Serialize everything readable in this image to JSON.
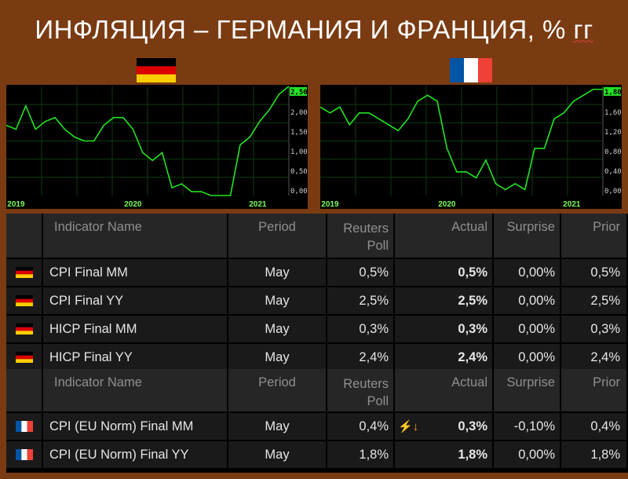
{
  "title": "ИНФЛЯЦИЯ – ГЕРМАНИЯ И ФРАНЦИЯ, % гг",
  "title_main": "ИНФЛЯЦИЯ – ГЕРМАНИЯ И ФРАНЦИЯ, % ",
  "title_end": "гг",
  "colors": {
    "line": "#22e422",
    "grid": "#0f3a0f",
    "axis_text": "#7dff5a",
    "poll": "#3ba6ff",
    "actual": "#f5a623",
    "background": "#7a3b12"
  },
  "chart_data": [
    {
      "type": "line",
      "title": "",
      "country": "Germany",
      "x": [
        "2018-12",
        "2019-01",
        "2019-02",
        "2019-03",
        "2019-04",
        "2019-05",
        "2019-06",
        "2019-07",
        "2019-08",
        "2019-09",
        "2019-10",
        "2019-11",
        "2019-12",
        "2020-01",
        "2020-02",
        "2020-03",
        "2020-04",
        "2020-05",
        "2020-06",
        "2020-07",
        "2020-08",
        "2020-09",
        "2020-10",
        "2020-11",
        "2020-12",
        "2021-01",
        "2021-02",
        "2021-03",
        "2021-04",
        "2021-05"
      ],
      "values": [
        1.5,
        1.4,
        2.0,
        1.4,
        1.6,
        1.7,
        1.4,
        1.2,
        1.1,
        1.1,
        1.5,
        1.7,
        1.7,
        1.4,
        0.8,
        0.6,
        0.8,
        -0.1,
        0.0,
        -0.2,
        -0.2,
        -0.3,
        -0.3,
        -0.3,
        1.0,
        1.2,
        1.6,
        1.9,
        2.3,
        2.5
      ],
      "xticks": [
        "2019",
        "2020",
        "2021"
      ],
      "yticks": [
        "2,50",
        "2,00",
        "1,50",
        "1,00",
        "0,50",
        "0,00"
      ],
      "ylim": [
        -0.3,
        2.5
      ],
      "current_value_label": "2,50",
      "grid": true
    },
    {
      "type": "line",
      "title": "",
      "country": "France",
      "x": [
        "2018-12",
        "2019-01",
        "2019-02",
        "2019-03",
        "2019-04",
        "2019-05",
        "2019-06",
        "2019-07",
        "2019-08",
        "2019-09",
        "2019-10",
        "2019-11",
        "2019-12",
        "2020-01",
        "2020-02",
        "2020-03",
        "2020-04",
        "2020-05",
        "2020-06",
        "2020-07",
        "2020-08",
        "2020-09",
        "2020-10",
        "2020-11",
        "2020-12",
        "2021-01",
        "2021-02",
        "2021-03",
        "2021-04",
        "2021-05"
      ],
      "values": [
        1.5,
        1.4,
        1.5,
        1.2,
        1.4,
        1.4,
        1.3,
        1.2,
        1.1,
        1.3,
        1.6,
        1.7,
        1.6,
        0.8,
        0.4,
        0.4,
        0.3,
        0.6,
        0.2,
        0.1,
        0.2,
        0.1,
        0.8,
        0.8,
        1.3,
        1.4,
        1.6,
        1.7,
        1.8,
        1.8
      ],
      "xticks": [
        "2019",
        "2020",
        "2021"
      ],
      "yticks": [
        "1,80",
        "1,60",
        "1,20",
        "0,80",
        "0,40",
        "0,00"
      ],
      "ylim": [
        0.0,
        1.85
      ],
      "current_value_label": "1,80",
      "grid": true
    }
  ],
  "table": {
    "headers": {
      "name": "Indicator Name",
      "period": "Period",
      "poll_line1": "Reuters",
      "poll_line2": "Poll",
      "actual": "Actual",
      "surprise": "Surprise",
      "prior": "Prior"
    },
    "germany_rows": [
      {
        "flag": "de-flag-icon",
        "name": "CPI Final MM",
        "period": "May",
        "poll": "0,5%",
        "actual": "0,5%",
        "surprise": "0,00%",
        "prior": "0,5%"
      },
      {
        "flag": "de-flag-icon",
        "name": "CPI Final YY",
        "period": "May",
        "poll": "2,5%",
        "actual": "2,5%",
        "surprise": "0,00%",
        "prior": "2,5%"
      },
      {
        "flag": "de-flag-icon",
        "name": "HICP Final MM",
        "period": "May",
        "poll": "0,3%",
        "actual": "0,3%",
        "surprise": "0,00%",
        "prior": "0,3%"
      },
      {
        "flag": "de-flag-icon",
        "name": "HICP Final YY",
        "period": "May",
        "poll": "2,4%",
        "actual": "2,4%",
        "surprise": "0,00%",
        "prior": "2,4%"
      }
    ],
    "france_rows": [
      {
        "flag": "fr-flag-icon",
        "name": "CPI (EU Norm) Final MM",
        "period": "May",
        "poll": "0,4%",
        "actual": "0,3%",
        "surprise": "-0,10%",
        "prior": "0,4%",
        "alert": "⚡↓"
      },
      {
        "flag": "fr-flag-icon",
        "name": "CPI (EU Norm) Final YY",
        "period": "May",
        "poll": "1,8%",
        "actual": "1,8%",
        "surprise": "0,00%",
        "prior": "1,8%"
      }
    ]
  }
}
